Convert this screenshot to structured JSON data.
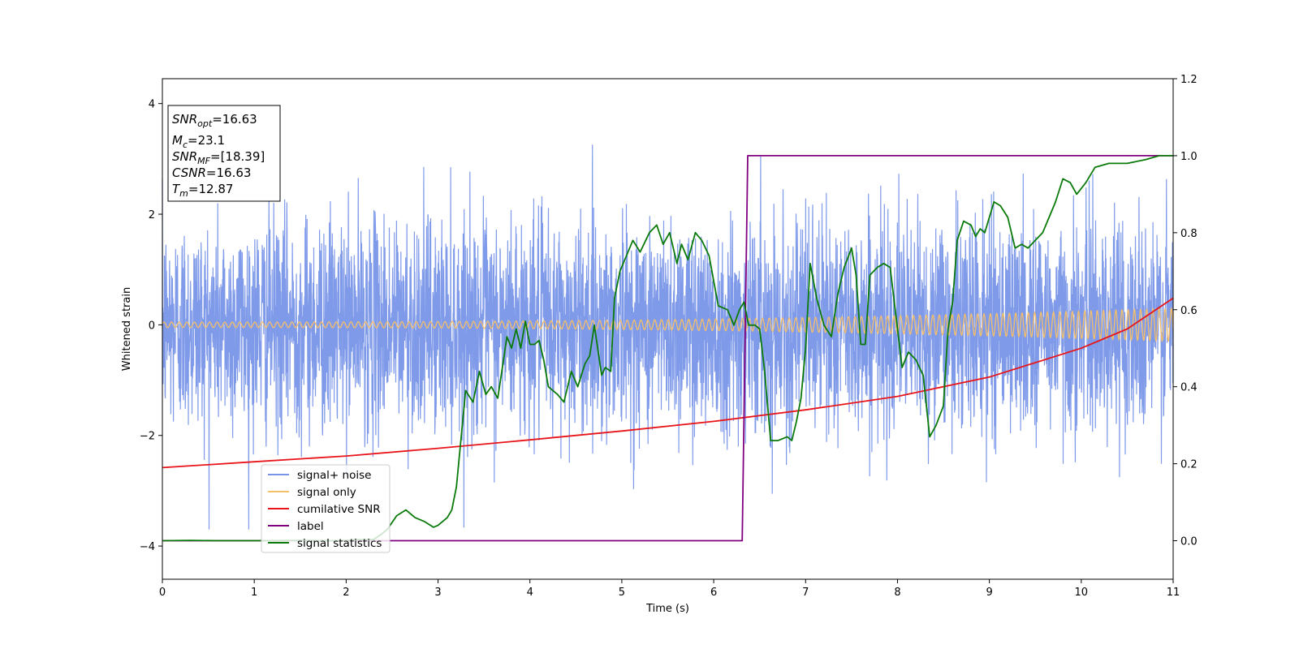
{
  "chart_data": {
    "type": "line",
    "xlabel": "Time (s)",
    "ylabel": "Whitened strain",
    "xlim": [
      0,
      11
    ],
    "ylim_left": [
      -4.6,
      4.45
    ],
    "ylim_right": [
      -0.1,
      1.2
    ],
    "x_ticks": [
      0,
      1,
      2,
      3,
      4,
      5,
      6,
      7,
      8,
      9,
      10,
      11
    ],
    "y_left_ticks": [
      -4,
      -2,
      0,
      2,
      4
    ],
    "y_right_ticks": [
      "0.0",
      "0.2",
      "0.4",
      "0.6",
      "0.8",
      "1.0",
      "1.2"
    ],
    "grid": false,
    "legend_placement": "lower-left",
    "annotation": {
      "snr_opt": {
        "main": "SNR",
        "sub": "opt",
        "value": "=16.63"
      },
      "mc": {
        "main": "M",
        "sub": "c",
        "value": "=23.1"
      },
      "snr_mf": {
        "main": "SNR",
        "sub": "MF",
        "value": "=[18.39]"
      },
      "csnr": {
        "main": "CSNR",
        "sub": "",
        "value": "=16.63"
      },
      "tm": {
        "main": "T",
        "sub": "m",
        "value": "=12.87"
      }
    },
    "series": [
      {
        "name": "signal+ noise",
        "axis": "left",
        "color": "#7895e8",
        "note_values": "dense whitened noise, approx. std 1 with peaks to +3.6 and -3.7"
      },
      {
        "name": "signal only",
        "axis": "left",
        "color": "#f5bf6a",
        "note_values": "chirp, amplitude growing from ~0.05 to ~0.3"
      },
      {
        "name": "cumilative SNR",
        "axis": "right",
        "color": "#e8141a",
        "x": [
          0,
          1,
          2,
          3,
          4,
          5,
          6,
          7,
          8,
          9,
          10,
          10.5,
          11
        ],
        "values": [
          0.19,
          0.205,
          0.22,
          0.24,
          0.262,
          0.285,
          0.31,
          0.34,
          0.375,
          0.425,
          0.5,
          0.55,
          0.63
        ]
      },
      {
        "name": "label",
        "axis": "right",
        "color": "#800080",
        "x": [
          0,
          6.31,
          6.37,
          11
        ],
        "values": [
          0,
          0,
          1,
          1
        ]
      },
      {
        "name": "signal statistics",
        "axis": "right",
        "color": "#0a7a0a",
        "x": [
          0,
          0.3,
          0.6,
          1.0,
          1.5,
          1.8,
          2.0,
          2.1,
          2.3,
          2.4,
          2.45,
          2.55,
          2.65,
          2.75,
          2.85,
          2.95,
          3.0,
          3.05,
          3.1,
          3.15,
          3.2,
          3.3,
          3.38,
          3.45,
          3.52,
          3.58,
          3.65,
          3.7,
          3.75,
          3.8,
          3.85,
          3.9,
          3.95,
          4.0,
          4.05,
          4.1,
          4.15,
          4.2,
          4.3,
          4.37,
          4.45,
          4.52,
          4.6,
          4.65,
          4.7,
          4.78,
          4.82,
          4.88,
          4.92,
          4.98,
          5.05,
          5.12,
          5.2,
          5.3,
          5.38,
          5.45,
          5.52,
          5.6,
          5.65,
          5.72,
          5.8,
          5.87,
          5.95,
          6.05,
          6.15,
          6.22,
          6.28,
          6.33,
          6.38,
          6.45,
          6.5,
          6.55,
          6.62,
          6.7,
          6.8,
          6.85,
          6.9,
          6.95,
          7.0,
          7.05,
          7.12,
          7.2,
          7.28,
          7.35,
          7.42,
          7.5,
          7.55,
          7.6,
          7.65,
          7.7,
          7.78,
          7.85,
          7.92,
          8.0,
          8.05,
          8.12,
          8.2,
          8.28,
          8.35,
          8.42,
          8.5,
          8.55,
          8.6,
          8.65,
          8.72,
          8.8,
          8.85,
          8.9,
          8.95,
          9.0,
          9.05,
          9.12,
          9.2,
          9.28,
          9.35,
          9.42,
          9.5,
          9.58,
          9.65,
          9.72,
          9.8,
          9.88,
          9.95,
          10.05,
          10.15,
          10.3,
          10.5,
          10.7,
          10.85,
          11.0
        ],
        "values": [
          0.0,
          0.001,
          0.0,
          0.0,
          0.001,
          0.0,
          0.001,
          0.003,
          0.003,
          0.02,
          0.03,
          0.065,
          0.08,
          0.06,
          0.05,
          0.035,
          0.04,
          0.05,
          0.06,
          0.08,
          0.14,
          0.39,
          0.36,
          0.44,
          0.38,
          0.4,
          0.37,
          0.45,
          0.53,
          0.5,
          0.55,
          0.5,
          0.57,
          0.51,
          0.51,
          0.52,
          0.47,
          0.4,
          0.38,
          0.36,
          0.44,
          0.4,
          0.46,
          0.48,
          0.56,
          0.43,
          0.45,
          0.44,
          0.63,
          0.7,
          0.74,
          0.78,
          0.75,
          0.8,
          0.82,
          0.77,
          0.8,
          0.72,
          0.77,
          0.73,
          0.8,
          0.78,
          0.74,
          0.61,
          0.6,
          0.56,
          0.6,
          0.62,
          0.56,
          0.56,
          0.55,
          0.45,
          0.26,
          0.26,
          0.27,
          0.26,
          0.31,
          0.37,
          0.5,
          0.72,
          0.63,
          0.56,
          0.53,
          0.64,
          0.71,
          0.76,
          0.69,
          0.51,
          0.51,
          0.69,
          0.71,
          0.72,
          0.71,
          0.55,
          0.45,
          0.49,
          0.47,
          0.43,
          0.27,
          0.3,
          0.35,
          0.55,
          0.62,
          0.78,
          0.83,
          0.82,
          0.79,
          0.81,
          0.8,
          0.84,
          0.88,
          0.87,
          0.84,
          0.76,
          0.77,
          0.76,
          0.78,
          0.8,
          0.84,
          0.88,
          0.94,
          0.93,
          0.9,
          0.93,
          0.97,
          0.98,
          0.98,
          0.99,
          1.0,
          1.0
        ]
      }
    ]
  }
}
